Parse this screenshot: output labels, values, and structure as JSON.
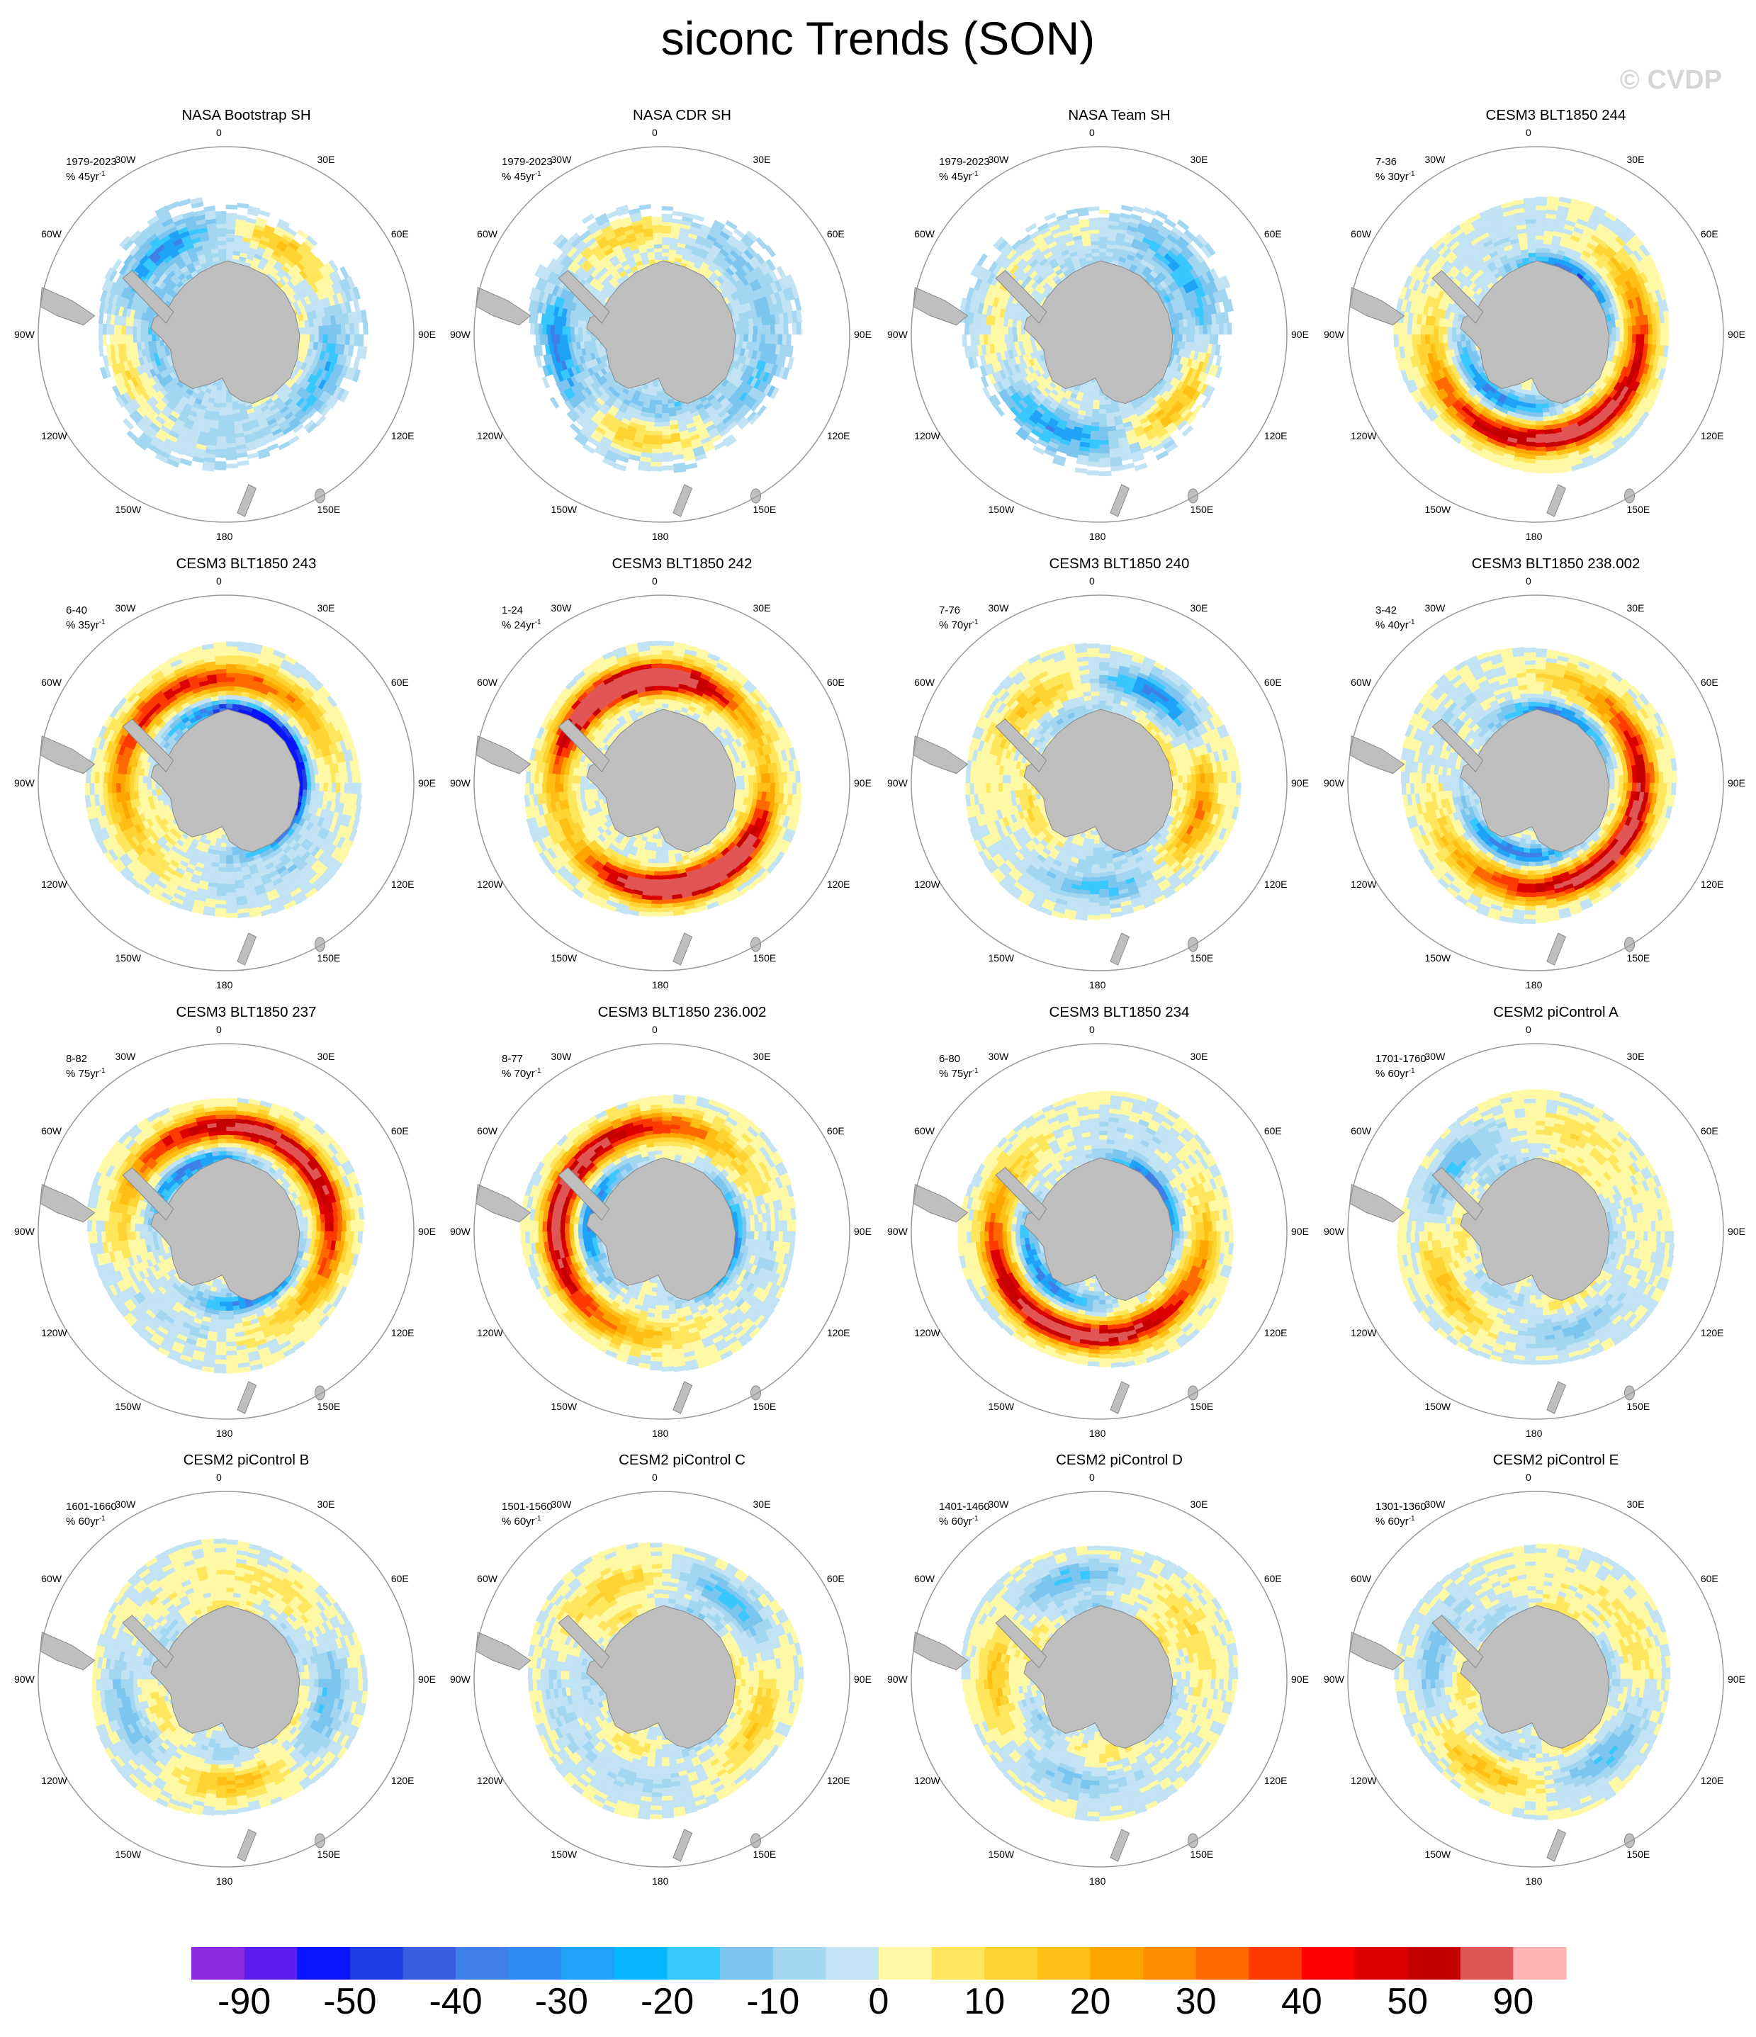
{
  "title": "siconc Trends (SON)",
  "watermark": "© CVDP",
  "longitude_labels": [
    "0",
    "30E",
    "60E",
    "90E",
    "120E",
    "150E",
    "180",
    "150W",
    "120W",
    "90W",
    "60W",
    "30W"
  ],
  "panels": [
    {
      "title": "NASA Bootstrap SH",
      "period": "1979-2023",
      "trend_unit": "% 45yr",
      "pattern": "obs"
    },
    {
      "title": "NASA CDR SH",
      "period": "1979-2023",
      "trend_unit": "% 45yr",
      "pattern": "obs"
    },
    {
      "title": "NASA Team SH",
      "period": "1979-2023",
      "trend_unit": "% 45yr",
      "pattern": "obs"
    },
    {
      "title": "CESM3 BLT1850 244",
      "period": "7-36",
      "trend_unit": "% 30yr",
      "pattern": "ring-pos-strong"
    },
    {
      "title": "CESM3 BLT1850 243",
      "period": "6-40",
      "trend_unit": "% 35yr",
      "pattern": "ring-neg-strong"
    },
    {
      "title": "CESM3 BLT1850 242",
      "period": "1-24",
      "trend_unit": "% 24yr",
      "pattern": "ring-pos-very-strong"
    },
    {
      "title": "CESM3 BLT1850 240",
      "period": "7-76",
      "trend_unit": "% 70yr",
      "pattern": "ring-mixed"
    },
    {
      "title": "CESM3 BLT1850 238.002",
      "period": "3-42",
      "trend_unit": "% 40yr",
      "pattern": "ring-pos-strong"
    },
    {
      "title": "CESM3 BLT1850 237",
      "period": "8-82",
      "trend_unit": "% 75yr",
      "pattern": "ring-pos-strong"
    },
    {
      "title": "CESM3 BLT1850 236.002",
      "period": "8-77",
      "trend_unit": "% 70yr",
      "pattern": "ring-pos-strong"
    },
    {
      "title": "CESM3 BLT1850 234",
      "period": "6-80",
      "trend_unit": "% 75yr",
      "pattern": "ring-pos-strong"
    },
    {
      "title": "CESM2 piControl A",
      "period": "1701-1760",
      "trend_unit": "% 60yr",
      "pattern": "ring-weak"
    },
    {
      "title": "CESM2 piControl B",
      "period": "1601-1660",
      "trend_unit": "% 60yr",
      "pattern": "ring-weak"
    },
    {
      "title": "CESM2 piControl C",
      "period": "1501-1560",
      "trend_unit": "% 60yr",
      "pattern": "ring-weak"
    },
    {
      "title": "CESM2 piControl D",
      "period": "1401-1460",
      "trend_unit": "% 60yr",
      "pattern": "ring-weak"
    },
    {
      "title": "CESM2 piControl E",
      "period": "1301-1360",
      "trend_unit": "% 60yr",
      "pattern": "ring-weak"
    }
  ],
  "colorbar": {
    "colors": [
      "#8A2BE2",
      "#5D1EF0",
      "#0A14FF",
      "#1F3BE6",
      "#3A5EE0",
      "#3F7FE8",
      "#2E8DF5",
      "#1EA3F8",
      "#06B6FF",
      "#39C7FF",
      "#7CC5EE",
      "#A3D6F0",
      "#C2E3F4",
      "#FFF9A6",
      "#FFE65C",
      "#FFD332",
      "#FFBF14",
      "#FFA500",
      "#FF8C00",
      "#FF6A00",
      "#FF3A00",
      "#FF0000",
      "#DD0000",
      "#C40000",
      "#E05555",
      "#FFB2B2"
    ],
    "labels": [
      "-90",
      "-50",
      "-40",
      "-30",
      "-20",
      "-10",
      "0",
      "10",
      "20",
      "30",
      "40",
      "50",
      "90"
    ]
  }
}
